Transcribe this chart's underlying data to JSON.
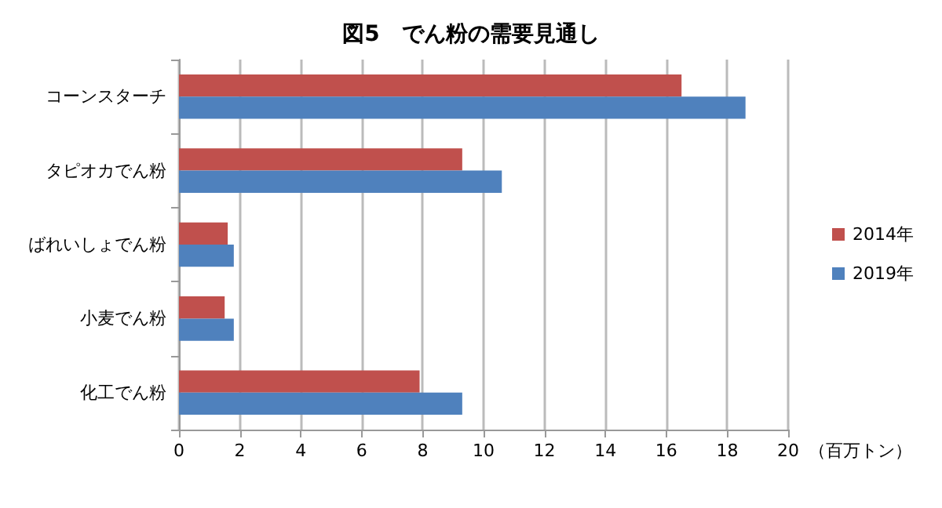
{
  "chart_data": {
    "type": "bar",
    "orientation": "horizontal",
    "title": "図5　でん粉の需要見通し",
    "xlabel": "（百万トン）",
    "categories": [
      "コーンスターチ",
      "タピオカでん粉",
      "ばれいしょでん粉",
      "小麦でん粉",
      "化工でん粉"
    ],
    "series": [
      {
        "name": "2014年",
        "color": "#c0504d",
        "values": [
          16.5,
          9.3,
          1.6,
          1.5,
          7.9
        ]
      },
      {
        "name": "2019年",
        "color": "#4f81bd",
        "values": [
          18.6,
          10.6,
          1.8,
          1.8,
          9.3
        ]
      }
    ],
    "xlim": [
      0,
      20
    ],
    "xticks": [
      0,
      2,
      4,
      6,
      8,
      10,
      12,
      14,
      16,
      18,
      20
    ],
    "grid": "x",
    "legend": "right"
  }
}
